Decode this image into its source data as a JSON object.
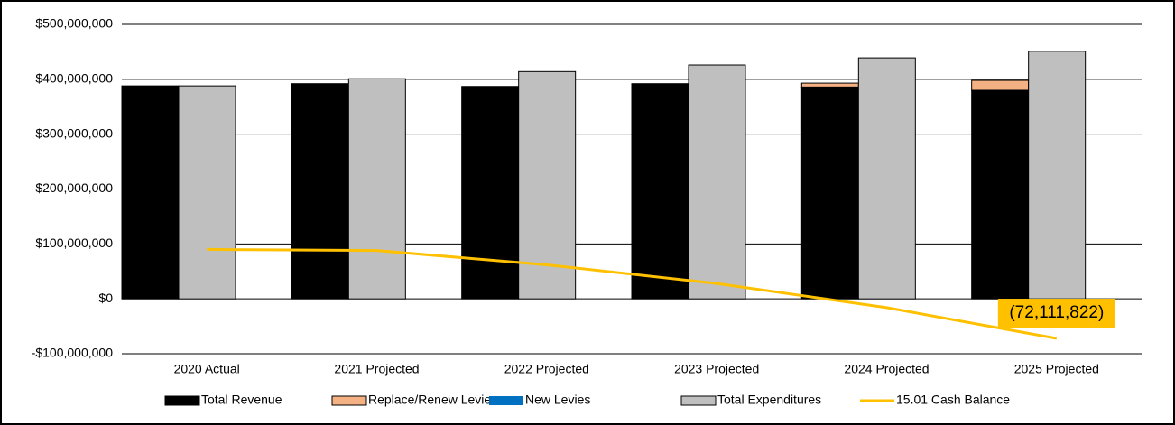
{
  "chart_data": {
    "type": "bar",
    "categories": [
      "2020 Actual",
      "2021 Projected",
      "2022 Projected",
      "2023 Projected",
      "2024 Projected",
      "2025 Projected"
    ],
    "series": [
      {
        "name": "Total Revenue",
        "color": "#000000",
        "stack": "rev",
        "values": [
          388000000,
          392000000,
          387000000,
          392000000,
          386000000,
          380000000
        ]
      },
      {
        "name": "Replace/Renew Levies",
        "color": "#f4b183",
        "stack": "rev",
        "values": [
          0,
          0,
          0,
          0,
          7000000,
          18000000
        ]
      },
      {
        "name": "New Levies",
        "color": "#0070c0",
        "stack": "rev",
        "values": [
          0,
          0,
          0,
          0,
          0,
          0
        ]
      },
      {
        "name": "Total Expenditures",
        "color": "#bfbfbf",
        "stack": "exp",
        "values": [
          388000000,
          401000000,
          414000000,
          426000000,
          439000000,
          451000000
        ]
      },
      {
        "name": "15.01 Cash Balance",
        "color": "#ffc000",
        "kind": "line",
        "values": [
          90000000,
          88000000,
          62000000,
          28000000,
          -16000000,
          -72111822
        ],
        "value_labels": [
          null,
          null,
          null,
          null,
          null,
          "(72,111,822)"
        ]
      }
    ],
    "ylim": [
      -100000000,
      500000000
    ],
    "yticks": [
      {
        "value": -100000000,
        "label": "-$100,000,000"
      },
      {
        "value": 0,
        "label": "$0"
      },
      {
        "value": 100000000,
        "label": "$100,000,000"
      },
      {
        "value": 200000000,
        "label": "$200,000,000"
      },
      {
        "value": 300000000,
        "label": "$300,000,000"
      },
      {
        "value": 400000000,
        "label": "$400,000,000"
      },
      {
        "value": 500000000,
        "label": "$500,000,000"
      }
    ],
    "grid": true,
    "legend": "bottom"
  }
}
